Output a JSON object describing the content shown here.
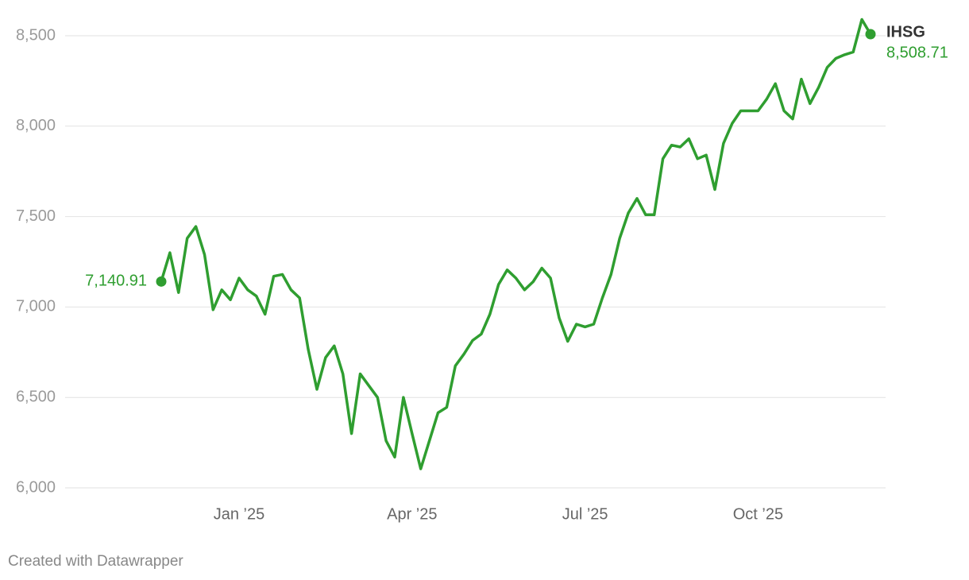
{
  "chart_data": {
    "type": "line",
    "categories": [
      null,
      null,
      null,
      null,
      null,
      null,
      null,
      null,
      null,
      "Jan ’25",
      null,
      null,
      null,
      null,
      null,
      null,
      null,
      null,
      null,
      null,
      null,
      null,
      null,
      null,
      null,
      null,
      null,
      null,
      null,
      "Apr ’25",
      null,
      null,
      null,
      null,
      null,
      null,
      null,
      null,
      null,
      null,
      null,
      null,
      null,
      null,
      null,
      null,
      null,
      null,
      null,
      "Jul ’25",
      null,
      null,
      null,
      null,
      null,
      null,
      null,
      null,
      null,
      null,
      null,
      null,
      null,
      null,
      null,
      null,
      null,
      null,
      null,
      "Oct ’25",
      null,
      null,
      null,
      null,
      null,
      null,
      null,
      null,
      null,
      null,
      null,
      null,
      null
    ],
    "series": [
      {
        "name": "IHSG",
        "color": "#2f9e30",
        "values": [
          7140.91,
          7300,
          7080,
          7380,
          7445,
          7290,
          6985,
          7095,
          7040,
          7160,
          7095,
          7060,
          6960,
          7170,
          7180,
          7095,
          7050,
          6765,
          6545,
          6720,
          6785,
          6630,
          6300,
          6630,
          6565,
          6500,
          6260,
          6170,
          6500,
          6300,
          6105,
          6260,
          6415,
          6445,
          6675,
          6740,
          6815,
          6850,
          6960,
          7125,
          7205,
          7160,
          7095,
          7140,
          7215,
          7160,
          6940,
          6810,
          6905,
          6890,
          6905,
          7050,
          7180,
          7380,
          7520,
          7600,
          7510,
          7510,
          7820,
          7895,
          7885,
          7930,
          7820,
          7840,
          7650,
          7905,
          8015,
          8085,
          8085,
          8085,
          8150,
          8235,
          8085,
          8040,
          8260,
          8125,
          8215,
          8325,
          8375,
          8395,
          8410,
          8590,
          8508.71
        ],
        "value_labels": [
          "7,140.91",
          null,
          null,
          null,
          null,
          null,
          null,
          null,
          null,
          null,
          null,
          null,
          null,
          null,
          null,
          null,
          null,
          null,
          null,
          null,
          null,
          null,
          null,
          null,
          null,
          null,
          null,
          null,
          null,
          null,
          null,
          null,
          null,
          null,
          null,
          null,
          null,
          null,
          null,
          null,
          null,
          null,
          null,
          null,
          null,
          null,
          null,
          null,
          null,
          null,
          null,
          null,
          null,
          null,
          null,
          null,
          null,
          null,
          null,
          null,
          null,
          null,
          null,
          null,
          null,
          null,
          null,
          null,
          null,
          null,
          null,
          null,
          null,
          null,
          null,
          null,
          null,
          null,
          null,
          null,
          null,
          null,
          "8,508.71"
        ]
      }
    ],
    "ylim": [
      5930,
      8600
    ],
    "yticks": [
      {
        "value": 6000,
        "label": "6,000"
      },
      {
        "value": 6500,
        "label": "6,500"
      },
      {
        "value": 7000,
        "label": "7,000"
      },
      {
        "value": 7500,
        "label": "7,500"
      },
      {
        "value": 8000,
        "label": "8,000"
      },
      {
        "value": 8500,
        "label": "8,500"
      }
    ],
    "grid": true,
    "footer": "Created with Datawrapper"
  }
}
